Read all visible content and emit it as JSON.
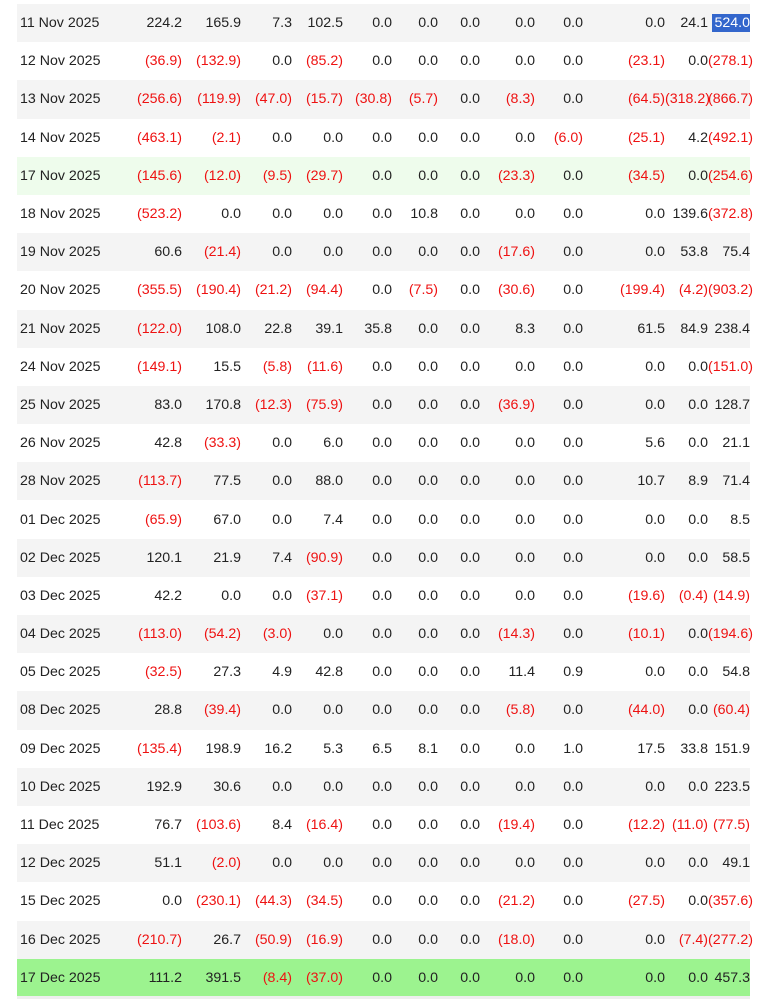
{
  "table": {
    "rows": [
      {
        "date": "11 Nov 2025",
        "cells": [
          "224.2",
          "165.9",
          "7.3",
          "102.5",
          "0.0",
          "0.0",
          "0.0",
          "0.0",
          "0.0",
          "0.0",
          "24.1",
          "524.0"
        ],
        "highlight": "",
        "selected_cell": 11
      },
      {
        "date": "12 Nov 2025",
        "cells": [
          "(36.9)",
          "(132.9)",
          "0.0",
          "(85.2)",
          "0.0",
          "0.0",
          "0.0",
          "0.0",
          "0.0",
          "(23.1)",
          "0.0",
          "(278.1)"
        ],
        "highlight": ""
      },
      {
        "date": "13 Nov 2025",
        "cells": [
          "(256.6)",
          "(119.9)",
          "(47.0)",
          "(15.7)",
          "(30.8)",
          "(5.7)",
          "0.0",
          "(8.3)",
          "0.0",
          "(64.5)",
          "(318.2)",
          "(866.7)"
        ],
        "highlight": ""
      },
      {
        "date": "14 Nov 2025",
        "cells": [
          "(463.1)",
          "(2.1)",
          "0.0",
          "0.0",
          "0.0",
          "0.0",
          "0.0",
          "0.0",
          "(6.0)",
          "(25.1)",
          "4.2",
          "(492.1)"
        ],
        "highlight": ""
      },
      {
        "date": "17 Nov 2025",
        "cells": [
          "(145.6)",
          "(12.0)",
          "(9.5)",
          "(29.7)",
          "0.0",
          "0.0",
          "0.0",
          "(23.3)",
          "0.0",
          "(34.5)",
          "0.0",
          "(254.6)"
        ],
        "highlight": "light"
      },
      {
        "date": "18 Nov 2025",
        "cells": [
          "(523.2)",
          "0.0",
          "0.0",
          "0.0",
          "0.0",
          "10.8",
          "0.0",
          "0.0",
          "0.0",
          "0.0",
          "139.6",
          "(372.8)"
        ],
        "highlight": ""
      },
      {
        "date": "19 Nov 2025",
        "cells": [
          "60.6",
          "(21.4)",
          "0.0",
          "0.0",
          "0.0",
          "0.0",
          "0.0",
          "(17.6)",
          "0.0",
          "0.0",
          "53.8",
          "75.4"
        ],
        "highlight": ""
      },
      {
        "date": "20 Nov 2025",
        "cells": [
          "(355.5)",
          "(190.4)",
          "(21.2)",
          "(94.4)",
          "0.0",
          "(7.5)",
          "0.0",
          "(30.6)",
          "0.0",
          "(199.4)",
          "(4.2)",
          "(903.2)"
        ],
        "highlight": ""
      },
      {
        "date": "21 Nov 2025",
        "cells": [
          "(122.0)",
          "108.0",
          "22.8",
          "39.1",
          "35.8",
          "0.0",
          "0.0",
          "8.3",
          "0.0",
          "61.5",
          "84.9",
          "238.4"
        ],
        "highlight": ""
      },
      {
        "date": "24 Nov 2025",
        "cells": [
          "(149.1)",
          "15.5",
          "(5.8)",
          "(11.6)",
          "0.0",
          "0.0",
          "0.0",
          "0.0",
          "0.0",
          "0.0",
          "0.0",
          "(151.0)"
        ],
        "highlight": ""
      },
      {
        "date": "25 Nov 2025",
        "cells": [
          "83.0",
          "170.8",
          "(12.3)",
          "(75.9)",
          "0.0",
          "0.0",
          "0.0",
          "(36.9)",
          "0.0",
          "0.0",
          "0.0",
          "128.7"
        ],
        "highlight": ""
      },
      {
        "date": "26 Nov 2025",
        "cells": [
          "42.8",
          "(33.3)",
          "0.0",
          "6.0",
          "0.0",
          "0.0",
          "0.0",
          "0.0",
          "0.0",
          "5.6",
          "0.0",
          "21.1"
        ],
        "highlight": ""
      },
      {
        "date": "28 Nov 2025",
        "cells": [
          "(113.7)",
          "77.5",
          "0.0",
          "88.0",
          "0.0",
          "0.0",
          "0.0",
          "0.0",
          "0.0",
          "10.7",
          "8.9",
          "71.4"
        ],
        "highlight": ""
      },
      {
        "date": "01 Dec 2025",
        "cells": [
          "(65.9)",
          "67.0",
          "0.0",
          "7.4",
          "0.0",
          "0.0",
          "0.0",
          "0.0",
          "0.0",
          "0.0",
          "0.0",
          "8.5"
        ],
        "highlight": ""
      },
      {
        "date": "02 Dec 2025",
        "cells": [
          "120.1",
          "21.9",
          "7.4",
          "(90.9)",
          "0.0",
          "0.0",
          "0.0",
          "0.0",
          "0.0",
          "0.0",
          "0.0",
          "58.5"
        ],
        "highlight": ""
      },
      {
        "date": "03 Dec 2025",
        "cells": [
          "42.2",
          "0.0",
          "0.0",
          "(37.1)",
          "0.0",
          "0.0",
          "0.0",
          "0.0",
          "0.0",
          "(19.6)",
          "(0.4)",
          "(14.9)"
        ],
        "highlight": ""
      },
      {
        "date": "04 Dec 2025",
        "cells": [
          "(113.0)",
          "(54.2)",
          "(3.0)",
          "0.0",
          "0.0",
          "0.0",
          "0.0",
          "(14.3)",
          "0.0",
          "(10.1)",
          "0.0",
          "(194.6)"
        ],
        "highlight": ""
      },
      {
        "date": "05 Dec 2025",
        "cells": [
          "(32.5)",
          "27.3",
          "4.9",
          "42.8",
          "0.0",
          "0.0",
          "0.0",
          "11.4",
          "0.9",
          "0.0",
          "0.0",
          "54.8"
        ],
        "highlight": ""
      },
      {
        "date": "08 Dec 2025",
        "cells": [
          "28.8",
          "(39.4)",
          "0.0",
          "0.0",
          "0.0",
          "0.0",
          "0.0",
          "(5.8)",
          "0.0",
          "(44.0)",
          "0.0",
          "(60.4)"
        ],
        "highlight": ""
      },
      {
        "date": "09 Dec 2025",
        "cells": [
          "(135.4)",
          "198.9",
          "16.2",
          "5.3",
          "6.5",
          "8.1",
          "0.0",
          "0.0",
          "1.0",
          "17.5",
          "33.8",
          "151.9"
        ],
        "highlight": ""
      },
      {
        "date": "10 Dec 2025",
        "cells": [
          "192.9",
          "30.6",
          "0.0",
          "0.0",
          "0.0",
          "0.0",
          "0.0",
          "0.0",
          "0.0",
          "0.0",
          "0.0",
          "223.5"
        ],
        "highlight": ""
      },
      {
        "date": "11 Dec 2025",
        "cells": [
          "76.7",
          "(103.6)",
          "8.4",
          "(16.4)",
          "0.0",
          "0.0",
          "0.0",
          "(19.4)",
          "0.0",
          "(12.2)",
          "(11.0)",
          "(77.5)"
        ],
        "highlight": ""
      },
      {
        "date": "12 Dec 2025",
        "cells": [
          "51.1",
          "(2.0)",
          "0.0",
          "0.0",
          "0.0",
          "0.0",
          "0.0",
          "0.0",
          "0.0",
          "0.0",
          "0.0",
          "49.1"
        ],
        "highlight": ""
      },
      {
        "date": "15 Dec 2025",
        "cells": [
          "0.0",
          "(230.1)",
          "(44.3)",
          "(34.5)",
          "0.0",
          "0.0",
          "0.0",
          "(21.2)",
          "0.0",
          "(27.5)",
          "0.0",
          "(357.6)"
        ],
        "highlight": ""
      },
      {
        "date": "16 Dec 2025",
        "cells": [
          "(210.7)",
          "26.7",
          "(50.9)",
          "(16.9)",
          "0.0",
          "0.0",
          "0.0",
          "(18.0)",
          "0.0",
          "0.0",
          "(7.4)",
          "(277.2)"
        ],
        "highlight": ""
      },
      {
        "date": "17 Dec 2025",
        "cells": [
          "111.2",
          "391.5",
          "(8.4)",
          "(37.0)",
          "0.0",
          "0.0",
          "0.0",
          "0.0",
          "0.0",
          "0.0",
          "0.0",
          "457.3"
        ],
        "highlight": "strong"
      }
    ]
  },
  "colors": {
    "negative_text": "#ee1111",
    "normal_text": "#222222",
    "row_stripe": "#f4f4f4",
    "highlight_light": "#eefcec",
    "highlight_strong": "#9cf38f",
    "selection": "#3366cc"
  }
}
